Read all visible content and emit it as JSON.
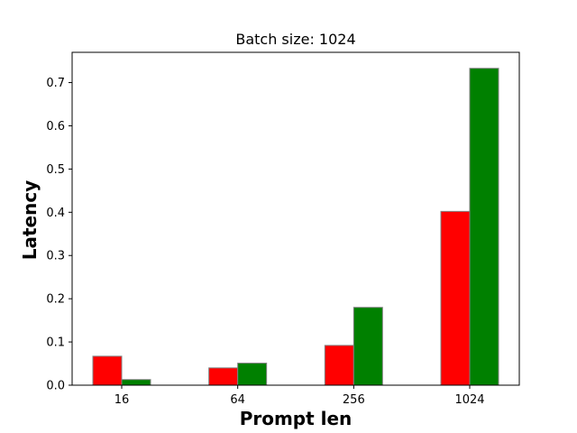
{
  "chart_data": {
    "type": "bar",
    "title": "Batch size: 1024",
    "xlabel": "Prompt len",
    "ylabel": "Latency",
    "categories": [
      "16",
      "64",
      "256",
      "1024"
    ],
    "series": [
      {
        "color": "#ff0000",
        "values": [
          0.067,
          0.04,
          0.092,
          0.402
        ]
      },
      {
        "color": "#008000",
        "values": [
          0.013,
          0.051,
          0.18,
          0.733
        ]
      }
    ],
    "ylim": [
      0,
      0.77
    ],
    "yticks": [
      0.0,
      0.1,
      0.2,
      0.3,
      0.4,
      0.5,
      0.6,
      0.7
    ],
    "ytick_labels": [
      "0.0",
      "0.1",
      "0.2",
      "0.3",
      "0.4",
      "0.5",
      "0.6",
      "0.7"
    ],
    "bar_edge_color": "#808080",
    "grid": false,
    "legend": "none"
  }
}
